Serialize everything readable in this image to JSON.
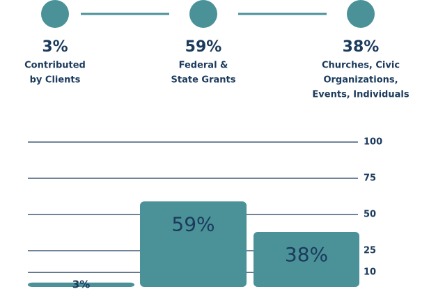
{
  "steps": [
    {
      "label": [
        "Contributed",
        "by Clients"
      ]
    },
    {
      "label": [
        "Federal &",
        "State Grants"
      ]
    },
    {
      "label": [
        "Churches, Civic",
        "Organizations,",
        "Events, Individuals"
      ]
    }
  ],
  "chart_data": {
    "type": "bar",
    "values": [
      3,
      59,
      38
    ],
    "value_labels": [
      "3%",
      "59%",
      "38%"
    ],
    "color": "#4a9198",
    "ylim": [
      0,
      100
    ],
    "yticks": [
      100,
      75,
      50,
      25,
      10
    ],
    "grid": true
  }
}
